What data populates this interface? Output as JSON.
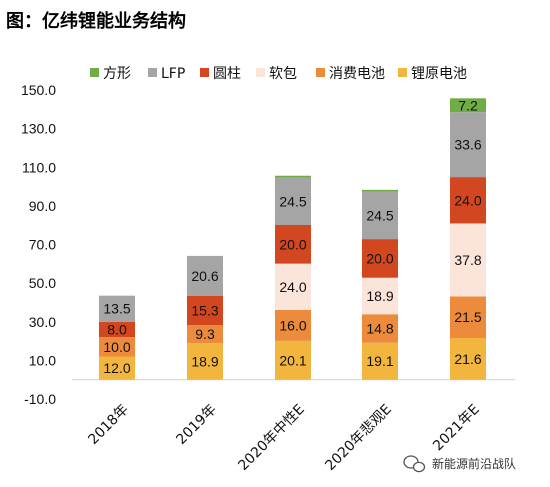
{
  "chart_data": {
    "type": "bar",
    "stacked": true,
    "title": "图：亿纬锂能业务结构",
    "categories": [
      "2018年",
      "2019年",
      "2020年中性E",
      "2020年悲观E",
      "2021年E"
    ],
    "yticks": [
      "-10.0",
      "10.0",
      "30.0",
      "50.0",
      "70.0",
      "90.0",
      "110.0",
      "130.0",
      "150.0"
    ],
    "ylim": [
      -10,
      150
    ],
    "legend_position": "top",
    "series": [
      {
        "name": "锂原电池",
        "color": "#F2B63F",
        "values": [
          12.0,
          18.9,
          20.1,
          19.1,
          21.6
        ],
        "labels": [
          "12.0",
          "18.9",
          "20.1",
          "19.1",
          "21.6"
        ]
      },
      {
        "name": "消费电池",
        "color": "#EC8B3C",
        "values": [
          10.0,
          9.3,
          16.0,
          14.8,
          21.5
        ],
        "labels": [
          "10.0",
          "9.3",
          "16.0",
          "14.8",
          "21.5"
        ]
      },
      {
        "name": "软包",
        "color": "#FBE4DA",
        "values": [
          0.0,
          0.0,
          24.0,
          18.9,
          37.8
        ],
        "labels": [
          "",
          "",
          "24.0",
          "18.9",
          "37.8"
        ]
      },
      {
        "name": "圆柱",
        "color": "#D2471F",
        "values": [
          8.0,
          15.3,
          20.0,
          20.0,
          24.0
        ],
        "labels": [
          "8.0",
          "15.3",
          "20.0",
          "20.0",
          "24.0"
        ]
      },
      {
        "name": "LFP",
        "color": "#A5A5A5",
        "values": [
          13.5,
          20.6,
          24.5,
          24.5,
          33.6
        ],
        "labels": [
          "13.5",
          "20.6",
          "24.5",
          "24.5",
          "33.6"
        ]
      },
      {
        "name": "方形",
        "color": "#70AD47",
        "values": [
          0.0,
          0.0,
          1.0,
          1.0,
          7.2
        ],
        "labels": [
          "",
          "",
          "",
          "",
          "7.2"
        ]
      }
    ],
    "legend_order": [
      "方形",
      "LFP",
      "圆柱",
      "软包",
      "消费电池",
      "锂原电池"
    ]
  },
  "watermark": {
    "text": "新能源前沿战队",
    "icon": "wechat-icon"
  }
}
